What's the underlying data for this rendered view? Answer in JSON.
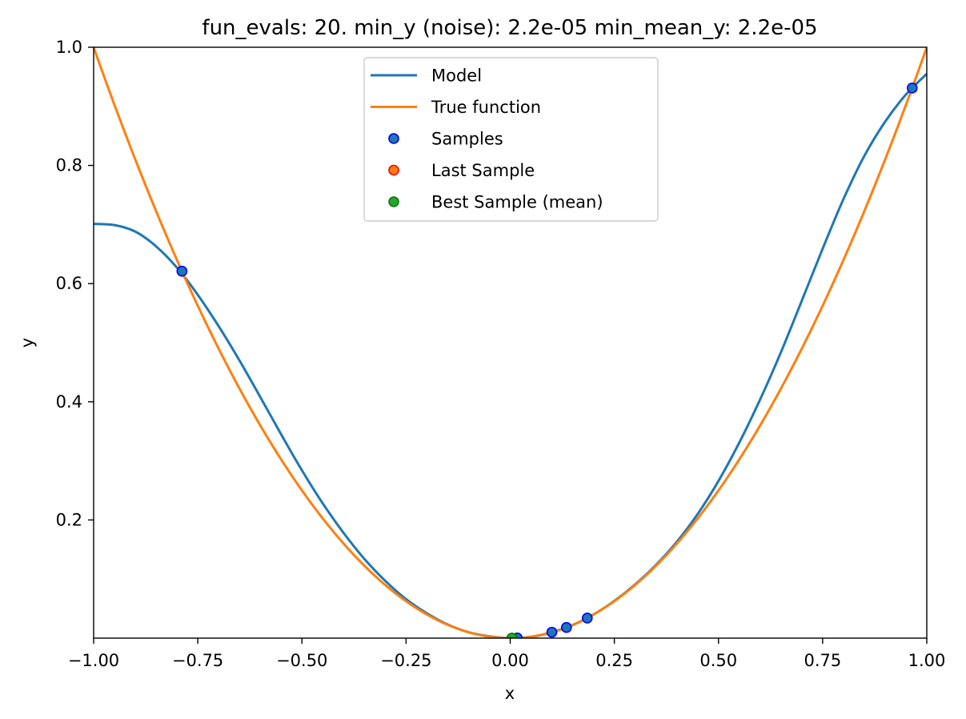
{
  "chart_data": {
    "type": "line",
    "title": "fun_evals: 20. min_y (noise): 2.2e-05 min_mean_y: 2.2e-05",
    "xlabel": "x",
    "ylabel": "y",
    "xlim": [
      -1.0,
      1.0
    ],
    "ylim": [
      0.0,
      1.0
    ],
    "xticks": [
      -1.0,
      -0.75,
      -0.5,
      -0.25,
      0.0,
      0.25,
      0.5,
      0.75,
      1.0
    ],
    "xtick_labels": [
      "−1.00",
      "−0.75",
      "−0.50",
      "−0.25",
      "0.00",
      "0.25",
      "0.50",
      "0.75",
      "1.00"
    ],
    "yticks": [
      0.2,
      0.4,
      0.6,
      0.8,
      1.0
    ],
    "ytick_labels": [
      "0.2",
      "0.4",
      "0.6",
      "0.8",
      "1.0"
    ],
    "grid": false,
    "legend_position": "upper-center",
    "series": [
      {
        "name": "Model",
        "kind": "line",
        "color": "#1f77b4",
        "points": [
          [
            -1.0,
            0.701
          ],
          [
            -0.95,
            0.699
          ],
          [
            -0.9,
            0.688
          ],
          [
            -0.85,
            0.663
          ],
          [
            -0.8,
            0.627
          ],
          [
            -0.75,
            0.581
          ],
          [
            -0.7,
            0.528
          ],
          [
            -0.65,
            0.47
          ],
          [
            -0.6,
            0.408
          ],
          [
            -0.55,
            0.345
          ],
          [
            -0.5,
            0.284
          ],
          [
            -0.45,
            0.228
          ],
          [
            -0.4,
            0.178
          ],
          [
            -0.35,
            0.134
          ],
          [
            -0.3,
            0.097
          ],
          [
            -0.25,
            0.066
          ],
          [
            -0.2,
            0.042
          ],
          [
            -0.15,
            0.023
          ],
          [
            -0.1,
            0.01
          ],
          [
            -0.05,
            0.003
          ],
          [
            0.0,
            0.0
          ],
          [
            0.05,
            0.002
          ],
          [
            0.1,
            0.01
          ],
          [
            0.15,
            0.022
          ],
          [
            0.2,
            0.04
          ],
          [
            0.25,
            0.063
          ],
          [
            0.3,
            0.091
          ],
          [
            0.35,
            0.124
          ],
          [
            0.4,
            0.163
          ],
          [
            0.45,
            0.21
          ],
          [
            0.5,
            0.266
          ],
          [
            0.55,
            0.331
          ],
          [
            0.6,
            0.404
          ],
          [
            0.65,
            0.484
          ],
          [
            0.7,
            0.571
          ],
          [
            0.75,
            0.659
          ],
          [
            0.8,
            0.743
          ],
          [
            0.85,
            0.816
          ],
          [
            0.9,
            0.874
          ],
          [
            0.95,
            0.92
          ],
          [
            1.0,
            0.955
          ]
        ]
      },
      {
        "name": "True function",
        "kind": "line",
        "color": "#ff7f0e",
        "function": "x^2",
        "points": [
          [
            -1.0,
            1.0
          ],
          [
            -0.9,
            0.81
          ],
          [
            -0.8,
            0.64
          ],
          [
            -0.7,
            0.49
          ],
          [
            -0.6,
            0.36
          ],
          [
            -0.5,
            0.25
          ],
          [
            -0.4,
            0.16
          ],
          [
            -0.3,
            0.09
          ],
          [
            -0.2,
            0.04
          ],
          [
            -0.1,
            0.01
          ],
          [
            0.0,
            0.0
          ],
          [
            0.1,
            0.01
          ],
          [
            0.2,
            0.04
          ],
          [
            0.3,
            0.09
          ],
          [
            0.4,
            0.16
          ],
          [
            0.5,
            0.25
          ],
          [
            0.6,
            0.36
          ],
          [
            0.7,
            0.49
          ],
          [
            0.8,
            0.64
          ],
          [
            0.9,
            0.81
          ],
          [
            1.0,
            1.0
          ]
        ]
      },
      {
        "name": "Samples",
        "kind": "scatter",
        "color": "#1f77b4",
        "edgecolor": "#0000ff",
        "points": [
          [
            -0.788,
            0.621
          ],
          [
            0.004,
            0.0
          ],
          [
            0.017,
            0.0003
          ],
          [
            0.1,
            0.01
          ],
          [
            0.135,
            0.018
          ],
          [
            0.185,
            0.034
          ],
          [
            0.965,
            0.931
          ]
        ]
      },
      {
        "name": "Last Sample",
        "kind": "scatter",
        "color": "#ff7f0e",
        "edgecolor": "#ff0000",
        "points": []
      },
      {
        "name": "Best Sample (mean)",
        "kind": "scatter",
        "color": "#2ca02c",
        "edgecolor": "#008000",
        "points": [
          [
            0.004,
            0.0
          ]
        ]
      }
    ]
  }
}
